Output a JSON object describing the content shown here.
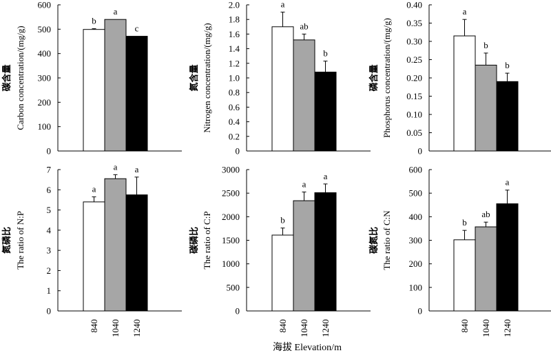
{
  "figure": {
    "xlabel": "海拔 Elevation/m"
  },
  "chart_data": [
    {
      "type": "bar",
      "categories": [
        "840",
        "1040",
        "1240"
      ],
      "values": [
        499,
        540,
        471
      ],
      "errors": [
        3,
        0,
        0
      ],
      "letters": [
        "b",
        "a",
        "c"
      ],
      "ylabel_cn": "碳含量",
      "ylabel_en": "Carbon concentration/(mg/g)",
      "ylim": [
        0,
        600
      ],
      "yticks": [
        "0",
        "100",
        "200",
        "300",
        "400",
        "500",
        "600"
      ],
      "colors": [
        "#ffffff",
        "#a6a6a6",
        "#000000"
      ]
    },
    {
      "type": "bar",
      "categories": [
        "840",
        "1040",
        "1240"
      ],
      "values": [
        1.7,
        1.52,
        1.08
      ],
      "errors": [
        0.2,
        0.08,
        0.15
      ],
      "letters": [
        "a",
        "ab",
        "b"
      ],
      "ylabel_cn": "氮含量",
      "ylabel_en": "Nitrogen concentration/(mg/g)",
      "ylim": [
        0,
        2.0
      ],
      "yticks": [
        "0",
        "0.2",
        "0.4",
        "0.6",
        "0.8",
        "1.0",
        "1.2",
        "1.4",
        "1.6",
        "1.8",
        "2.0"
      ],
      "colors": [
        "#ffffff",
        "#a6a6a6",
        "#000000"
      ]
    },
    {
      "type": "bar",
      "categories": [
        "840",
        "1040",
        "1240"
      ],
      "values": [
        0.315,
        0.235,
        0.19
      ],
      "errors": [
        0.045,
        0.033,
        0.023
      ],
      "letters": [
        "a",
        "b",
        "b"
      ],
      "ylabel_cn": "磷含量",
      "ylabel_en": "Phosphorus concentration/(mg/g)",
      "ylim": [
        0,
        0.4
      ],
      "yticks": [
        "0",
        "0.05",
        "0.10",
        "0.15",
        "0.20",
        "0.25",
        "0.30",
        "0.35",
        "0.40"
      ],
      "colors": [
        "#ffffff",
        "#a6a6a6",
        "#000000"
      ]
    },
    {
      "type": "bar",
      "categories": [
        "840",
        "1040",
        "1240"
      ],
      "values": [
        5.4,
        6.55,
        5.75
      ],
      "errors": [
        0.25,
        0.2,
        0.88
      ],
      "letters": [
        "a",
        "a",
        "a"
      ],
      "ylabel_cn": "氮磷比",
      "ylabel_en": "The ratio of N:P",
      "ylim": [
        0,
        7
      ],
      "yticks": [
        "0",
        "1",
        "2",
        "3",
        "4",
        "5",
        "6",
        "7"
      ],
      "colors": [
        "#ffffff",
        "#a6a6a6",
        "#000000"
      ]
    },
    {
      "type": "bar",
      "categories": [
        "840",
        "1040",
        "1240"
      ],
      "values": [
        1610,
        2340,
        2510
      ],
      "errors": [
        150,
        185,
        185
      ],
      "letters": [
        "b",
        "a",
        "a"
      ],
      "ylabel_cn": "碳磷比",
      "ylabel_en": "The ratio of C:P",
      "ylim": [
        0,
        3000
      ],
      "yticks": [
        "0",
        "500",
        "1000",
        "1500",
        "2000",
        "2500",
        "3000"
      ],
      "colors": [
        "#ffffff",
        "#a6a6a6",
        "#000000"
      ]
    },
    {
      "type": "bar",
      "categories": [
        "840",
        "1040",
        "1240"
      ],
      "values": [
        302,
        357,
        455
      ],
      "errors": [
        40,
        20,
        58
      ],
      "letters": [
        "b",
        "ab",
        "a"
      ],
      "ylabel_cn": "碳氮比",
      "ylabel_en": "The ratio of C:N",
      "ylim": [
        0,
        600
      ],
      "yticks": [
        "0",
        "100",
        "200",
        "300",
        "400",
        "500",
        "600"
      ],
      "colors": [
        "#ffffff",
        "#a6a6a6",
        "#000000"
      ]
    }
  ]
}
